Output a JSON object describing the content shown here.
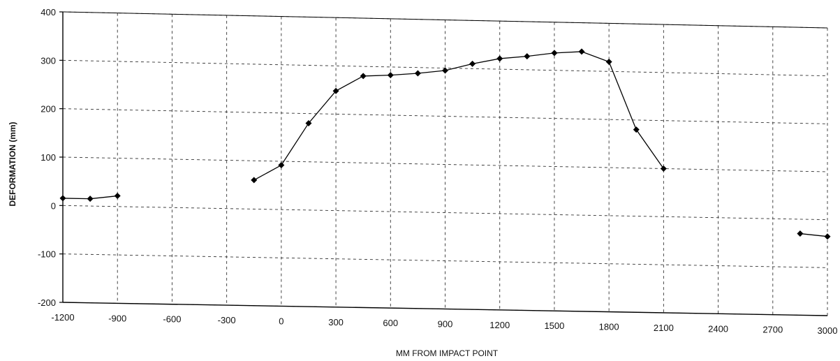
{
  "chart_data": {
    "type": "line",
    "title": "",
    "xlabel": "MM FROM IMPACT POINT",
    "ylabel": "DEFORMATION (mm)",
    "xlim": [
      -1200,
      3000
    ],
    "ylim": [
      -200,
      400
    ],
    "x_ticks": [
      -1200,
      -900,
      -600,
      -300,
      0,
      300,
      600,
      900,
      1200,
      1500,
      1800,
      2100,
      2400,
      2700,
      3000
    ],
    "x_tick_labels": [
      "-1200",
      "-900",
      "-600",
      "-300",
      "0",
      "300",
      "600",
      "900",
      "1200",
      "1500",
      "1800",
      "2100",
      "2400",
      "2700",
      "3000"
    ],
    "y_ticks": [
      -200,
      -100,
      0,
      100,
      200,
      300,
      400
    ],
    "y_tick_labels": [
      "-200",
      "-100",
      "0",
      "100",
      "200",
      "300",
      "400"
    ],
    "grid": true,
    "legend": "none",
    "line_color": "#000000",
    "segments": [
      {
        "points": [
          [
            -1200,
            15
          ],
          [
            -1050,
            15
          ],
          [
            -900,
            22
          ]
        ]
      },
      {
        "points": [
          [
            -150,
            60
          ],
          [
            0,
            92
          ],
          [
            150,
            180
          ],
          [
            300,
            248
          ],
          [
            450,
            280
          ],
          [
            600,
            283
          ],
          [
            750,
            288
          ],
          [
            900,
            295
          ],
          [
            1050,
            310
          ],
          [
            1200,
            322
          ],
          [
            1350,
            328
          ],
          [
            1500,
            336
          ],
          [
            1650,
            340
          ],
          [
            1800,
            320
          ],
          [
            1950,
            180
          ],
          [
            2100,
            100
          ]
        ]
      },
      {
        "points": [
          [
            2850,
            -30
          ],
          [
            3000,
            -35
          ]
        ]
      }
    ]
  }
}
